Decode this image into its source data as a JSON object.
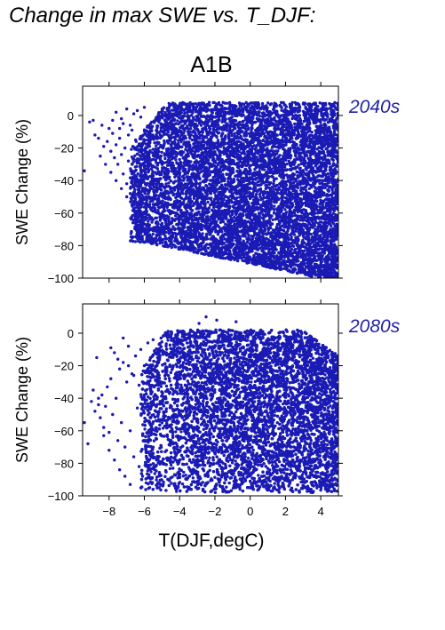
{
  "figure": {
    "title": "Change in max SWE vs. T_DJF:"
  },
  "chart_data": {
    "type": "scatter",
    "title": "A1B",
    "xlabel": "T(DJF,degC)",
    "ylabel": "SWE Change (%)",
    "xlim": [
      -9.5,
      5
    ],
    "ylim": [
      -100,
      18
    ],
    "xticks": [
      -8,
      -6,
      -4,
      -2,
      0,
      2,
      4
    ],
    "yticks": [
      0,
      -20,
      -40,
      -60,
      -80,
      -100
    ],
    "point_color": "#1a1ab4",
    "label_color": "#2323a8",
    "panels": [
      {
        "label": "2040s",
        "points": [
          [
            -9.4,
            -34
          ],
          [
            -9.1,
            -4
          ],
          [
            -8.9,
            -3
          ],
          [
            -8.8,
            -12
          ],
          [
            -8.6,
            -14
          ],
          [
            -8.4,
            -6
          ],
          [
            -8.3,
            -19
          ],
          [
            -8.1,
            -16
          ],
          [
            -8.0,
            -8
          ],
          [
            -7.9,
            -22
          ],
          [
            -7.8,
            -11
          ],
          [
            -7.7,
            -26
          ],
          [
            -7.6,
            -18
          ],
          [
            -7.5,
            -30
          ],
          [
            -7.4,
            -14
          ],
          [
            -7.3,
            -24
          ],
          [
            -7.2,
            -36
          ],
          [
            -7.1,
            -20
          ],
          [
            -7.0,
            -42
          ],
          [
            -6.9,
            -28
          ],
          [
            -6.8,
            -48
          ],
          [
            -6.7,
            -34
          ],
          [
            -6.6,
            -55
          ],
          [
            -6.5,
            -40
          ],
          [
            -6.4,
            -60
          ],
          [
            -6.3,
            -46
          ],
          [
            -6.2,
            -66
          ],
          [
            -6.1,
            -52
          ],
          [
            -6.0,
            -70
          ],
          [
            -5.9,
            -58
          ],
          [
            -5.8,
            -74
          ],
          [
            -5.7,
            -62
          ],
          [
            -7.6,
            2
          ],
          [
            -7.3,
            -2
          ],
          [
            -7.0,
            4
          ],
          [
            -6.8,
            -6
          ],
          [
            -6.6,
            1
          ],
          [
            -6.4,
            3
          ],
          [
            -6.2,
            -1
          ],
          [
            -6.0,
            5
          ],
          [
            -7.8,
            -3
          ],
          [
            -7.4,
            -8
          ],
          [
            -7.2,
            -5
          ],
          [
            -6.9,
            -12
          ],
          [
            -6.7,
            -9
          ],
          [
            -6.5,
            -15
          ],
          [
            -6.3,
            -21
          ],
          [
            -6.1,
            -27
          ],
          [
            -5.9,
            -33
          ],
          [
            -5.8,
            -39
          ],
          [
            -5.6,
            -45
          ],
          [
            -5.5,
            -51
          ],
          [
            -5.4,
            -57
          ],
          [
            -5.3,
            -63
          ],
          [
            -5.2,
            -69
          ],
          [
            -5.1,
            -75
          ],
          [
            -8.5,
            -25
          ],
          [
            -8.2,
            -30
          ],
          [
            -7.9,
            -35
          ],
          [
            -7.6,
            -40
          ],
          [
            -7.3,
            -45
          ],
          [
            -7.0,
            -50
          ],
          [
            -6.7,
            -55
          ]
        ],
        "density": {
          "x_range": [
            -6.8,
            5
          ],
          "top_fn": "rise",
          "bottom_fn": "fall",
          "notes": "Dense blue cloud filling most of the panel from about -6 degC to the right edge; upper edge near +8%, lower edge descending from about -80% to -100%."
        }
      },
      {
        "label": "2080s",
        "points": [
          [
            -9.4,
            -55
          ],
          [
            -9.2,
            -68
          ],
          [
            -9.0,
            -42
          ],
          [
            -8.9,
            -35
          ],
          [
            -8.8,
            -48
          ],
          [
            -8.7,
            -15
          ],
          [
            -8.6,
            -40
          ],
          [
            -8.5,
            -52
          ],
          [
            -8.4,
            -38
          ],
          [
            -8.3,
            -58
          ],
          [
            -8.2,
            -45
          ],
          [
            -8.1,
            -33
          ],
          [
            -8.0,
            -61
          ],
          [
            -7.9,
            -28
          ],
          [
            -7.8,
            -50
          ],
          [
            -7.7,
            -12
          ],
          [
            -7.6,
            -40
          ],
          [
            -7.5,
            -66
          ],
          [
            -7.4,
            -22
          ],
          [
            -7.3,
            -55
          ],
          [
            -7.2,
            -18
          ],
          [
            -7.1,
            -70
          ],
          [
            -7.0,
            -30
          ],
          [
            -6.9,
            -8
          ],
          [
            -6.8,
            -60
          ],
          [
            -6.7,
            -25
          ],
          [
            -6.6,
            -76
          ],
          [
            -6.5,
            -14
          ],
          [
            -6.4,
            -46
          ],
          [
            -6.3,
            -82
          ],
          [
            -6.2,
            -10
          ],
          [
            -6.1,
            -88
          ],
          [
            -6.0,
            -20
          ],
          [
            -5.9,
            -92
          ],
          [
            -5.8,
            -6
          ],
          [
            -5.7,
            -95
          ],
          [
            -5.6,
            -36
          ],
          [
            -5.5,
            -4
          ],
          [
            -7.9,
            -9
          ],
          [
            -7.5,
            -16
          ],
          [
            -7.2,
            -3
          ],
          [
            -6.9,
            -20
          ],
          [
            -6.6,
            -26
          ],
          [
            -6.3,
            -32
          ],
          [
            -6.0,
            -38
          ],
          [
            -5.8,
            -44
          ],
          [
            -8.6,
            -44
          ],
          [
            -8.3,
            -63
          ],
          [
            -8.0,
            -72
          ],
          [
            -7.7,
            -78
          ],
          [
            -7.4,
            -84
          ],
          [
            -7.1,
            -88
          ],
          [
            -6.8,
            -93
          ],
          [
            -2.5,
            10
          ],
          [
            -1.9,
            8
          ],
          [
            -0.8,
            7
          ],
          [
            -2.9,
            6
          ]
        ],
        "density": {
          "x_range": [
            -6.2,
            5
          ],
          "top_fn": "plateau",
          "bottom_fn": "floor",
          "notes": "Dense blue cloud from about -6 degC to the right edge; upper edge near 0-2%, dense mass between -40% and -100%."
        }
      }
    ]
  }
}
